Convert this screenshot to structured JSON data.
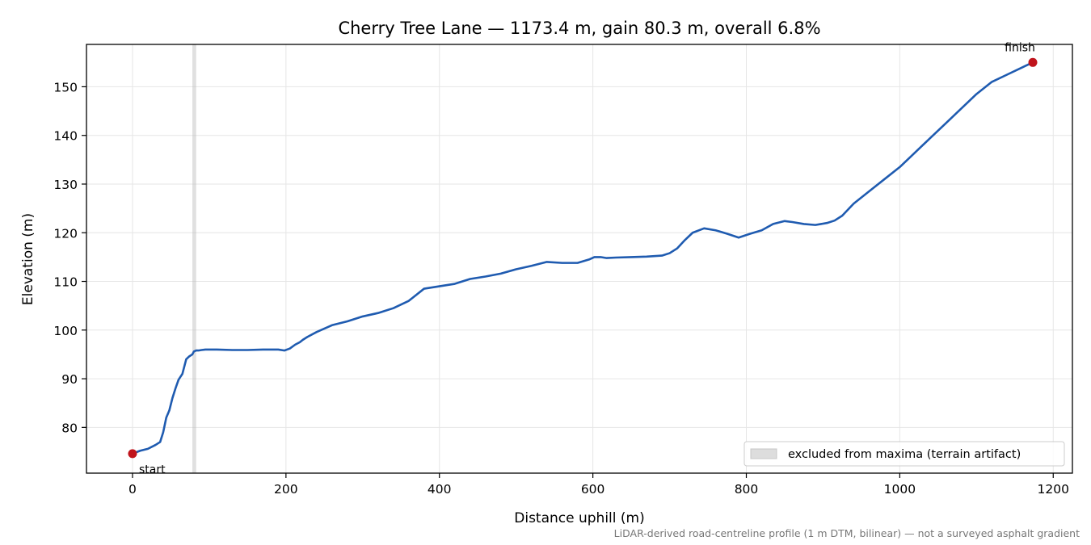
{
  "chart_data": {
    "type": "line",
    "title": "Cherry Tree Lane — 1173.4 m, gain 80.3 m, overall 6.8%",
    "xlabel": "Distance uphill (m)",
    "ylabel": "Elevation (m)",
    "xlim": [
      -60,
      1225
    ],
    "ylim": [
      70.6,
      158.7
    ],
    "x_ticks": [
      "0",
      "200",
      "400",
      "600",
      "800",
      "1000",
      "1200"
    ],
    "y_ticks": [
      "80",
      "90",
      "100",
      "110",
      "120",
      "130",
      "140",
      "150"
    ],
    "x_tick_values": [
      0,
      200,
      400,
      600,
      800,
      1000,
      1200
    ],
    "y_tick_values": [
      80,
      90,
      100,
      110,
      120,
      130,
      140,
      150
    ],
    "grid": true,
    "line_color": "#1f5bb0",
    "series": [
      {
        "x": [
          0,
          10,
          20,
          30,
          36,
          40,
          44,
          48,
          52,
          56,
          60,
          65,
          70,
          74,
          78,
          80,
          83,
          86,
          90,
          95,
          110,
          130,
          150,
          170,
          190,
          198,
          205,
          212,
          218,
          222,
          228,
          240,
          260,
          280,
          300,
          320,
          340,
          360,
          380,
          400,
          420,
          440,
          460,
          480,
          500,
          520,
          540,
          560,
          580,
          595,
          602,
          610,
          618,
          630,
          650,
          670,
          690,
          700,
          710,
          720,
          730,
          745,
          760,
          775,
          790,
          805,
          820,
          835,
          850,
          860,
          875,
          890,
          905,
          915,
          925,
          940,
          960,
          980,
          1000,
          1020,
          1040,
          1060,
          1080,
          1100,
          1120,
          1140,
          1160,
          1173.4
        ],
        "y": [
          74.6,
          75.2,
          75.6,
          76.4,
          77.0,
          79.0,
          82.0,
          83.5,
          86.0,
          88.0,
          89.8,
          91.0,
          94.0,
          94.6,
          95.0,
          95.6,
          95.8,
          95.8,
          95.9,
          96.0,
          96.0,
          95.9,
          95.9,
          96.0,
          96.0,
          95.8,
          96.2,
          97.0,
          97.5,
          98.0,
          98.6,
          99.6,
          101.0,
          101.8,
          102.8,
          103.5,
          104.5,
          106.0,
          108.5,
          109.0,
          109.5,
          110.5,
          111.0,
          111.6,
          112.5,
          113.2,
          114.0,
          113.8,
          113.8,
          114.5,
          115.0,
          115.0,
          114.8,
          114.9,
          115.0,
          115.1,
          115.3,
          115.8,
          116.8,
          118.5,
          120.0,
          120.9,
          120.5,
          119.8,
          119.0,
          119.8,
          120.5,
          121.8,
          122.4,
          122.2,
          121.8,
          121.6,
          122.0,
          122.5,
          123.5,
          126.0,
          128.5,
          131.0,
          133.5,
          136.5,
          139.5,
          142.5,
          145.5,
          148.5,
          151.0,
          152.5,
          154.0,
          155.0
        ]
      }
    ],
    "excluded_band": {
      "x_start": 78,
      "x_end": 83,
      "color": "#bbbbbb"
    },
    "points": [
      {
        "label": "start",
        "x": 0,
        "y": 74.6,
        "color": "#c0141c"
      },
      {
        "label": "finish",
        "x": 1173.4,
        "y": 155.0,
        "color": "#c0141c"
      }
    ],
    "legend": {
      "position": "lower right",
      "entries": [
        {
          "label": "excluded from maxima (terrain artifact)"
        }
      ]
    },
    "footnote": "LiDAR-derived road-centreline profile (1 m DTM, bilinear) — not a surveyed asphalt gradient"
  }
}
